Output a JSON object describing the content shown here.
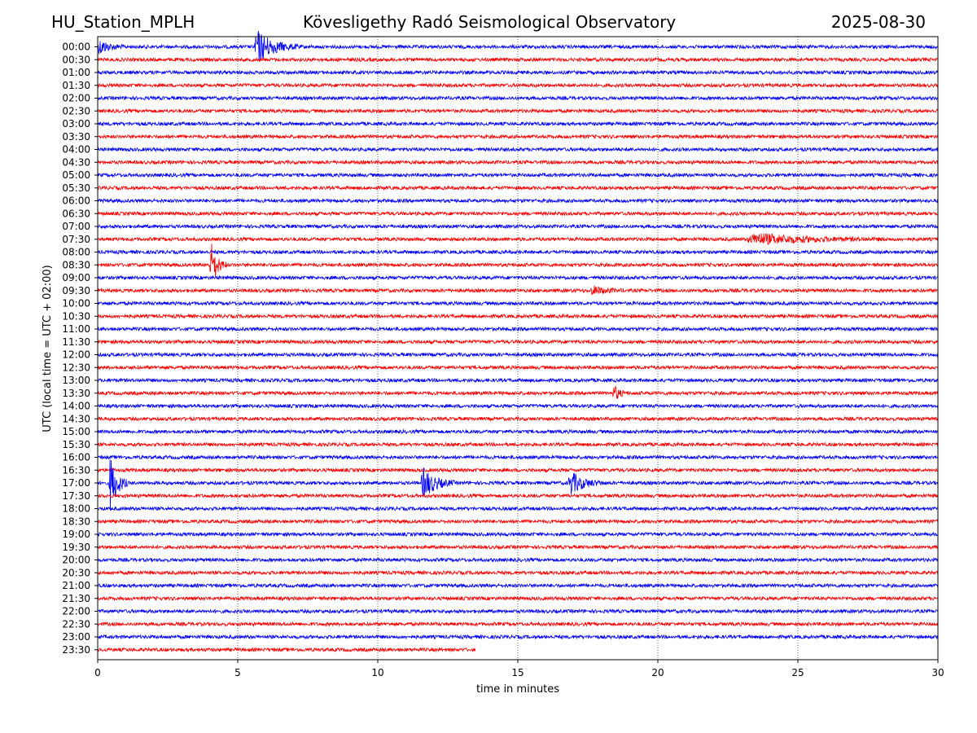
{
  "header": {
    "station": "HU_Station_MPLH",
    "observatory": "Kövesligethy Radó Seismological Observatory",
    "date": "2025-08-30"
  },
  "chart_data": {
    "type": "line",
    "title": "Kövesligethy Radó Seismological Observatory",
    "xlabel": "time in minutes",
    "ylabel": "UTC (local time = UTC + 02:00)",
    "xlim": [
      0,
      30
    ],
    "x_ticks": [
      "0",
      "5",
      "10",
      "15",
      "20",
      "25",
      "30"
    ],
    "grid": "vertical dotted",
    "row_labels": [
      "00:00",
      "00:30",
      "01:00",
      "01:30",
      "02:00",
      "02:30",
      "03:00",
      "03:30",
      "04:00",
      "04:30",
      "05:00",
      "05:30",
      "06:00",
      "06:30",
      "07:00",
      "07:30",
      "08:00",
      "08:30",
      "09:00",
      "09:30",
      "10:00",
      "10:30",
      "11:00",
      "11:30",
      "12:00",
      "12:30",
      "13:00",
      "13:30",
      "14:00",
      "14:30",
      "15:00",
      "15:30",
      "16:00",
      "16:30",
      "17:00",
      "17:30",
      "18:00",
      "18:30",
      "19:00",
      "19:30",
      "20:00",
      "20:30",
      "21:00",
      "21:30",
      "22:00",
      "22:30",
      "23:00",
      "23:30"
    ],
    "colors": [
      "#0000ff",
      "#ff0000"
    ],
    "last_row_end_minute": 13.5,
    "events": [
      {
        "row": 0,
        "start_min": 0.0,
        "dur_min": 1.0,
        "amp": 0.75
      },
      {
        "row": 0,
        "start_min": 5.6,
        "dur_min": 1.6,
        "amp": 1.7
      },
      {
        "row": 15,
        "start_min": 23.2,
        "dur_min": 5.0,
        "amp": 0.55
      },
      {
        "row": 17,
        "start_min": 4.0,
        "dur_min": 0.6,
        "amp": 2.5
      },
      {
        "row": 19,
        "start_min": 17.6,
        "dur_min": 1.2,
        "amp": 0.45
      },
      {
        "row": 27,
        "start_min": 18.4,
        "dur_min": 0.5,
        "amp": 0.9
      },
      {
        "row": 34,
        "start_min": 0.4,
        "dur_min": 0.7,
        "amp": 3.0
      },
      {
        "row": 34,
        "start_min": 11.55,
        "dur_min": 1.2,
        "amp": 1.6
      },
      {
        "row": 34,
        "start_min": 16.8,
        "dur_min": 1.3,
        "amp": 1.2
      }
    ]
  }
}
